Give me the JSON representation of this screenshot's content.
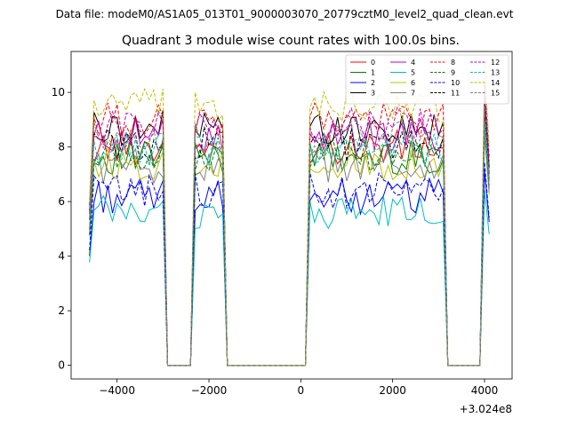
{
  "figure": {
    "supertitle": "Data file: modeM0/AS1A05_013T01_9000003070_20779cztM0_level2_quad_clean.evt"
  },
  "chart_data": {
    "type": "line",
    "title": "Quadrant 3 module wise count rates with 100.0s bins.",
    "xlabel": "",
    "ylabel": "",
    "x_offset_label": "+3.024e8",
    "xlim": [
      -5000,
      4600
    ],
    "ylim": [
      -0.5,
      11.5
    ],
    "xticks": [
      -4000,
      -2000,
      0,
      2000,
      4000
    ],
    "xtick_labels": [
      "−4000",
      "−2000",
      "0",
      "2000",
      "4000"
    ],
    "yticks": [
      0,
      2,
      4,
      6,
      8,
      10
    ],
    "ytick_labels": [
      "0",
      "2",
      "4",
      "6",
      "8",
      "10"
    ],
    "legend_position": "upper-right",
    "legend_columns": 4,
    "segments": [
      {
        "start": -4600,
        "end": -3000
      },
      {
        "start": -3000,
        "end": -2400,
        "gap": true
      },
      {
        "start": -2400,
        "end": -1700
      },
      {
        "start": -1700,
        "end": 100,
        "gap": true
      },
      {
        "start": 100,
        "end": 3100
      },
      {
        "start": 3100,
        "end": 3900,
        "gap": true
      },
      {
        "start": 3900,
        "end": 4100
      }
    ],
    "series": [
      {
        "name": "0",
        "color": "#ff0000",
        "dashed": false,
        "level": 8.0
      },
      {
        "name": "1",
        "color": "#008000",
        "dashed": false,
        "level": 7.6
      },
      {
        "name": "2",
        "color": "#0000ff",
        "dashed": false,
        "level": 6.2
      },
      {
        "name": "3",
        "color": "#000000",
        "dashed": false,
        "level": 8.7
      },
      {
        "name": "4",
        "color": "#bf00bf",
        "dashed": false,
        "level": 8.4
      },
      {
        "name": "5",
        "color": "#00bfbf",
        "dashed": false,
        "level": 5.6
      },
      {
        "name": "6",
        "color": "#bfbf00",
        "dashed": false,
        "level": 7.4
      },
      {
        "name": "7",
        "color": "#808080",
        "dashed": false,
        "level": 7.3
      },
      {
        "name": "8",
        "color": "#ff0000",
        "dashed": true,
        "level": 9.0
      },
      {
        "name": "9",
        "color": "#008000",
        "dashed": true,
        "level": 7.7
      },
      {
        "name": "10",
        "color": "#0000ff",
        "dashed": true,
        "level": 6.4
      },
      {
        "name": "11",
        "color": "#000000",
        "dashed": true,
        "level": 8.1
      },
      {
        "name": "12",
        "color": "#bf00bf",
        "dashed": true,
        "level": 8.8
      },
      {
        "name": "13",
        "color": "#00bfbf",
        "dashed": true,
        "level": 7.9
      },
      {
        "name": "14",
        "color": "#bfbf00",
        "dashed": true,
        "level": 9.5
      },
      {
        "name": "15",
        "color": "#808080",
        "dashed": true,
        "level": 8.3
      }
    ]
  }
}
